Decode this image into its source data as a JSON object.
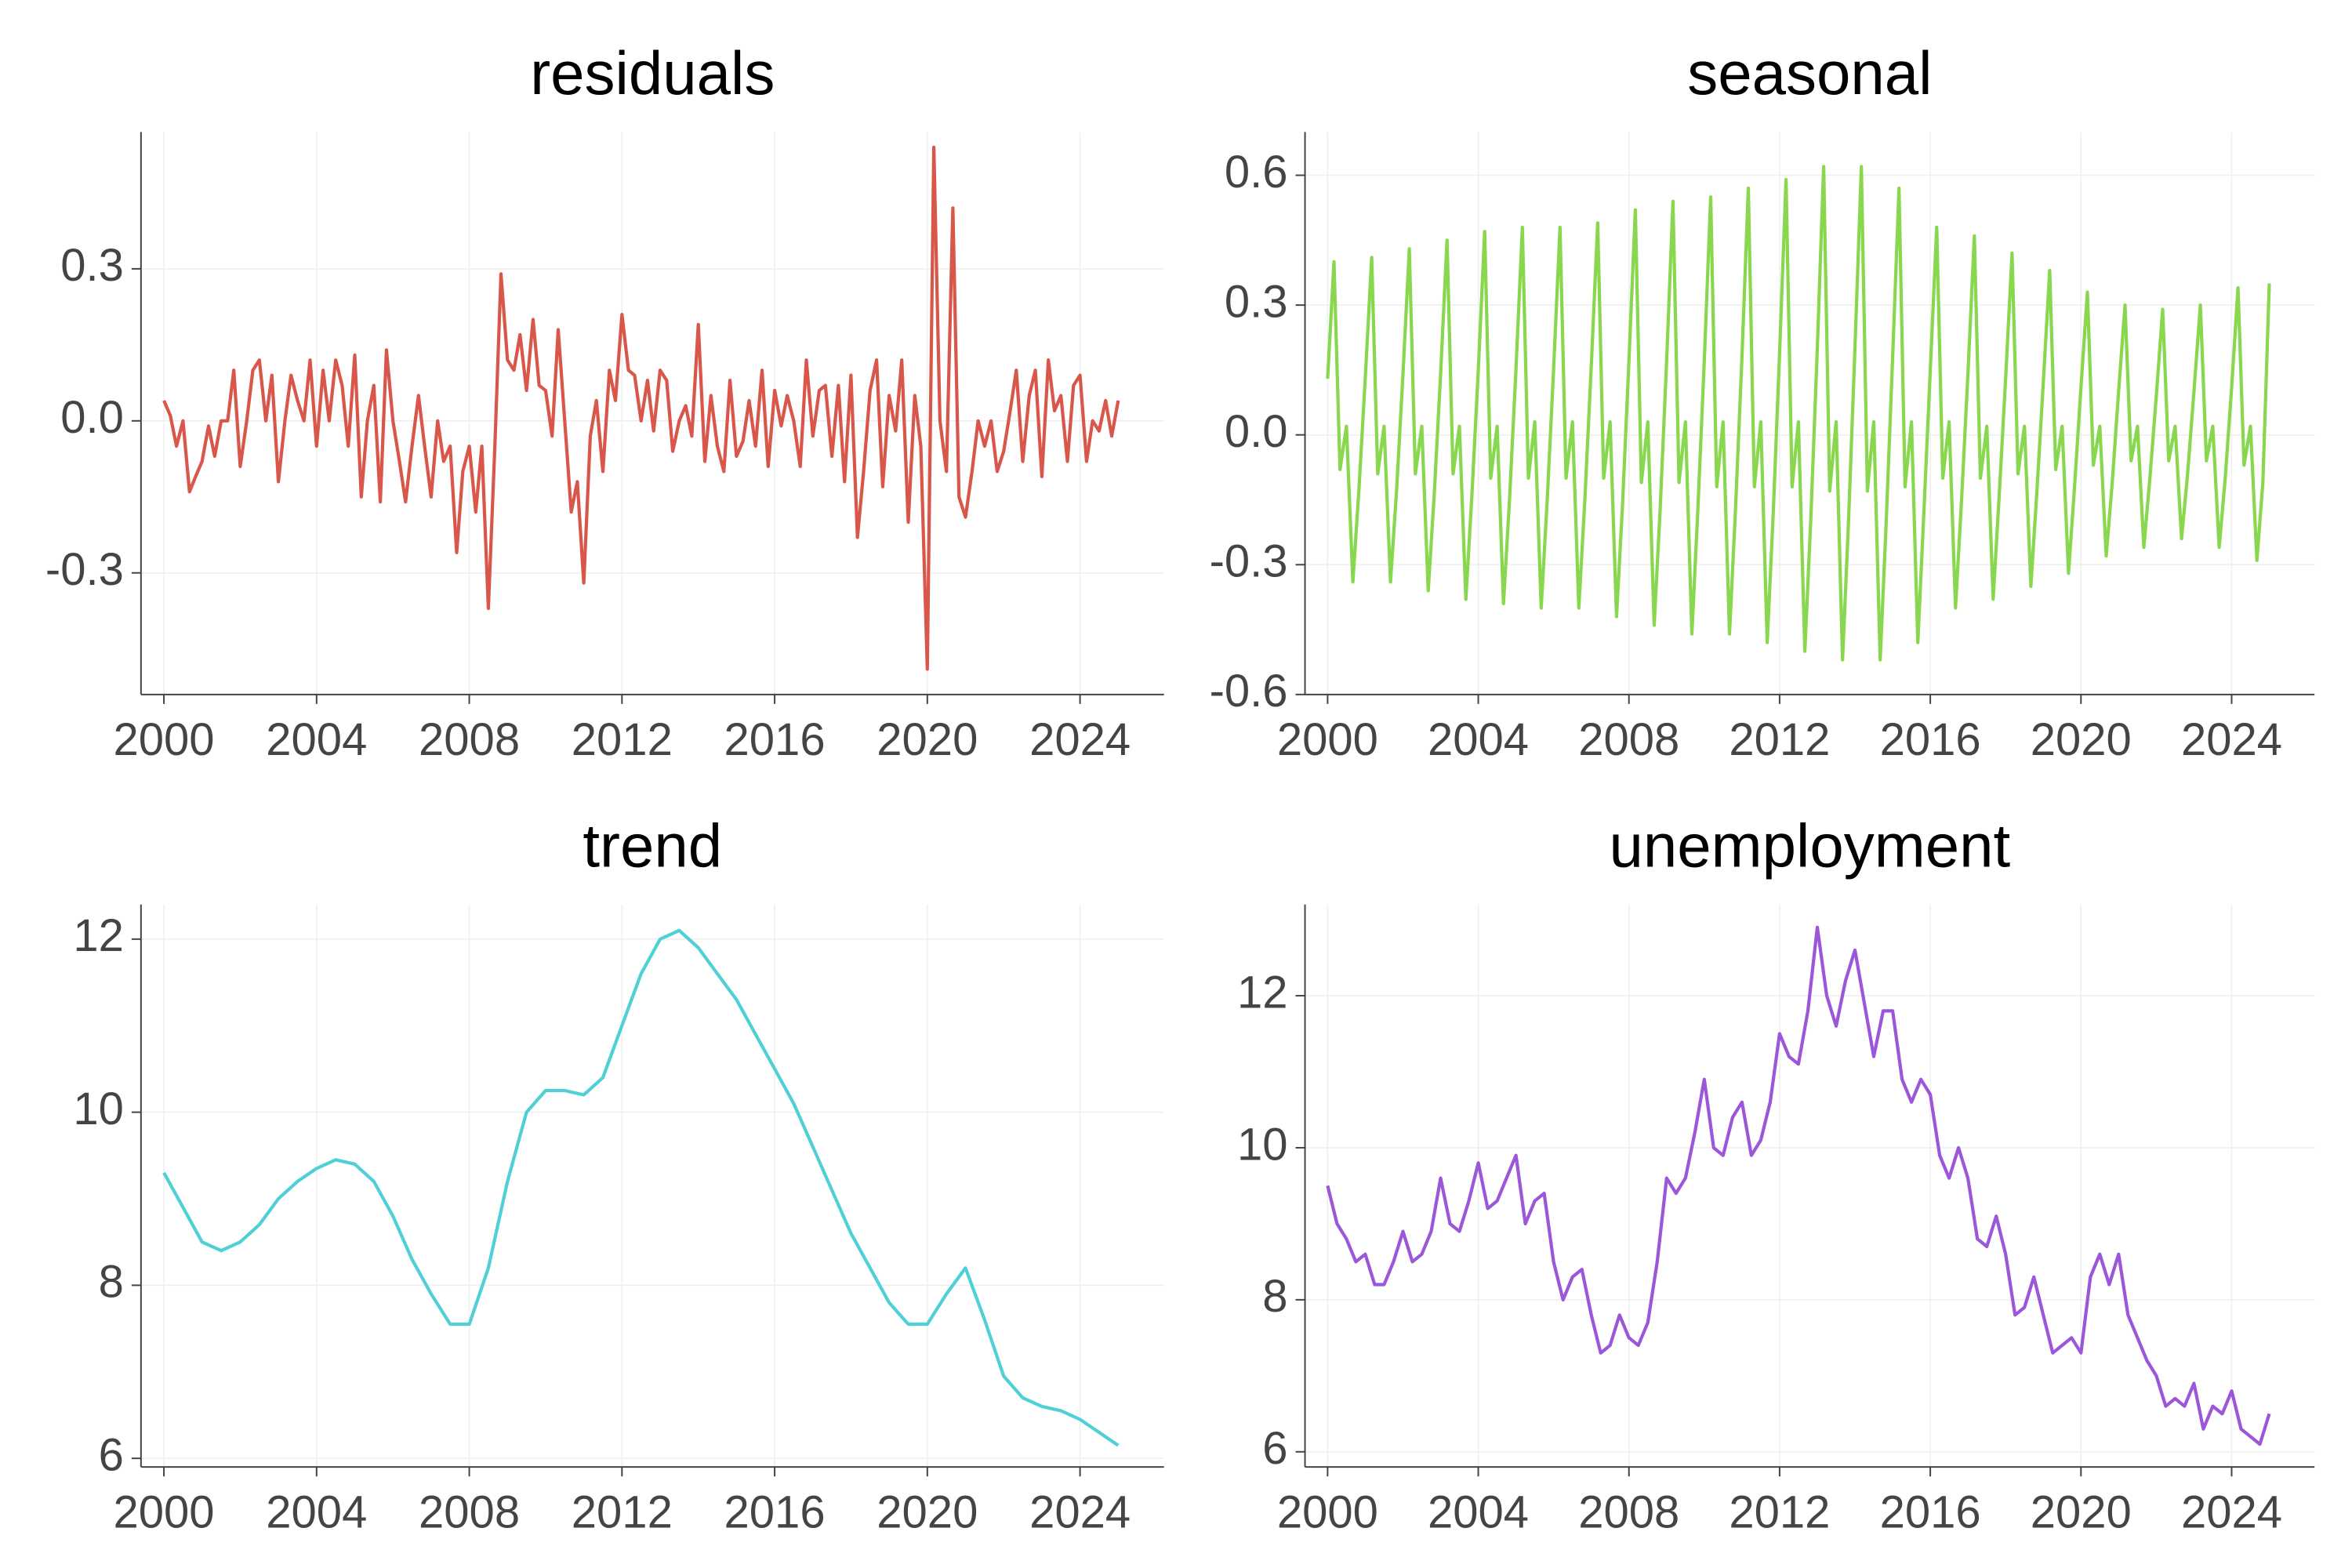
{
  "chart_data": [
    {
      "type": "line",
      "title": "residuals",
      "color": "#d9574a",
      "grid": true,
      "xlim": [
        1999.4,
        2026.2
      ],
      "xticks": [
        2000,
        2004,
        2008,
        2012,
        2016,
        2020,
        2024
      ],
      "ylim": [
        -0.54,
        0.57
      ],
      "yticks": [
        -0.3,
        {
          "value": 0,
          "label": "0.0"
        },
        0.3
      ],
      "x": [
        2000,
        2000.17,
        2000.33,
        2000.5,
        2000.67,
        2000.83,
        2001,
        2001.17,
        2001.33,
        2001.5,
        2001.67,
        2001.83,
        2002,
        2002.17,
        2002.33,
        2002.5,
        2002.67,
        2002.83,
        2003,
        2003.17,
        2003.33,
        2003.5,
        2003.67,
        2003.83,
        2004,
        2004.17,
        2004.33,
        2004.5,
        2004.67,
        2004.83,
        2005,
        2005.17,
        2005.33,
        2005.5,
        2005.67,
        2005.83,
        2006,
        2006.17,
        2006.33,
        2006.5,
        2006.67,
        2006.83,
        2007,
        2007.17,
        2007.33,
        2007.5,
        2007.67,
        2007.83,
        2008,
        2008.17,
        2008.33,
        2008.5,
        2008.67,
        2008.83,
        2009,
        2009.17,
        2009.33,
        2009.5,
        2009.67,
        2009.83,
        2010,
        2010.17,
        2010.33,
        2010.5,
        2010.67,
        2010.83,
        2011,
        2011.17,
        2011.33,
        2011.5,
        2011.67,
        2011.83,
        2012,
        2012.17,
        2012.33,
        2012.5,
        2012.67,
        2012.83,
        2013,
        2013.17,
        2013.33,
        2013.5,
        2013.67,
        2013.83,
        2014,
        2014.17,
        2014.33,
        2014.5,
        2014.67,
        2014.83,
        2015,
        2015.17,
        2015.33,
        2015.5,
        2015.67,
        2015.83,
        2016,
        2016.17,
        2016.33,
        2016.5,
        2016.67,
        2016.83,
        2017,
        2017.17,
        2017.33,
        2017.5,
        2017.67,
        2017.83,
        2018,
        2018.17,
        2018.33,
        2018.5,
        2018.67,
        2018.83,
        2019,
        2019.17,
        2019.33,
        2019.5,
        2019.67,
        2019.83,
        2020,
        2020.17,
        2020.33,
        2020.5,
        2020.67,
        2020.83,
        2021,
        2021.17,
        2021.33,
        2021.5,
        2021.67,
        2021.83,
        2022,
        2022.17,
        2022.33,
        2022.5,
        2022.67,
        2022.83,
        2023,
        2023.17,
        2023.33,
        2023.5,
        2023.67,
        2023.83,
        2024,
        2024.17,
        2024.33,
        2024.5,
        2024.67,
        2024.83,
        2025
      ],
      "values": [
        0.04,
        0.01,
        -0.05,
        0,
        -0.14,
        -0.11,
        -0.08,
        -0.01,
        -0.07,
        0,
        0,
        0.1,
        -0.09,
        0,
        0.1,
        0.12,
        0,
        0.09,
        -0.12,
        0,
        0.09,
        0.04,
        0,
        0.12,
        -0.05,
        0.1,
        0,
        0.12,
        0.07,
        -0.05,
        0.13,
        -0.15,
        0,
        0.07,
        -0.16,
        0.14,
        0,
        -0.08,
        -0.16,
        -0.05,
        0.05,
        -0.05,
        -0.15,
        0,
        -0.08,
        -0.05,
        -0.26,
        -0.1,
        -0.05,
        -0.18,
        -0.05,
        -0.37,
        -0.05,
        0.29,
        0.12,
        0.1,
        0.17,
        0.06,
        0.2,
        0.07,
        0.06,
        -0.03,
        0.18,
        0,
        -0.18,
        -0.12,
        -0.32,
        -0.03,
        0.04,
        -0.1,
        0.1,
        0.04,
        0.21,
        0.1,
        0.09,
        0,
        0.08,
        -0.02,
        0.1,
        0.08,
        -0.06,
        0,
        0.03,
        -0.03,
        0.19,
        -0.08,
        0.05,
        -0.05,
        -0.1,
        0.08,
        -0.07,
        -0.04,
        0.04,
        -0.05,
        0.1,
        -0.09,
        0.06,
        -0.01,
        0.05,
        0,
        -0.09,
        0.12,
        -0.03,
        0.06,
        0.07,
        -0.07,
        0.07,
        -0.12,
        0.09,
        -0.23,
        -0.1,
        0.06,
        0.12,
        -0.13,
        0.05,
        -0.02,
        0.12,
        -0.2,
        0.05,
        -0.05,
        -0.49,
        0.54,
        0,
        -0.1,
        0.42,
        -0.15,
        -0.19,
        -0.1,
        0,
        -0.05,
        0,
        -0.1,
        -0.06,
        0.02,
        0.1,
        -0.08,
        0.05,
        0.1,
        -0.11,
        0.12,
        0.02,
        0.05,
        -0.08,
        0.07,
        0.09,
        -0.08,
        0,
        -0.02,
        0.04,
        -0.03,
        0.04
      ]
    },
    {
      "type": "line",
      "title": "seasonal",
      "color": "#88d74f",
      "grid": true,
      "xlim": [
        1999.4,
        2026.2
      ],
      "xticks": [
        2000,
        2004,
        2008,
        2012,
        2016,
        2020,
        2024
      ],
      "ylim": [
        -0.6,
        0.7
      ],
      "yticks": [
        -0.6,
        -0.3,
        {
          "value": 0,
          "label": "0.0"
        },
        0.3,
        0.6
      ],
      "x": [
        2000,
        2000.17,
        2000.33,
        2000.5,
        2000.67,
        2000.83,
        2001,
        2001.17,
        2001.33,
        2001.5,
        2001.67,
        2001.83,
        2002,
        2002.17,
        2002.33,
        2002.5,
        2002.67,
        2002.83,
        2003,
        2003.17,
        2003.33,
        2003.5,
        2003.67,
        2003.83,
        2004,
        2004.17,
        2004.33,
        2004.5,
        2004.67,
        2004.83,
        2005,
        2005.17,
        2005.33,
        2005.5,
        2005.67,
        2005.83,
        2006,
        2006.17,
        2006.33,
        2006.5,
        2006.67,
        2006.83,
        2007,
        2007.17,
        2007.33,
        2007.5,
        2007.67,
        2007.83,
        2008,
        2008.17,
        2008.33,
        2008.5,
        2008.67,
        2008.83,
        2009,
        2009.17,
        2009.33,
        2009.5,
        2009.67,
        2009.83,
        2010,
        2010.17,
        2010.33,
        2010.5,
        2010.67,
        2010.83,
        2011,
        2011.17,
        2011.33,
        2011.5,
        2011.67,
        2011.83,
        2012,
        2012.17,
        2012.33,
        2012.5,
        2012.67,
        2012.83,
        2013,
        2013.17,
        2013.33,
        2013.5,
        2013.67,
        2013.83,
        2014,
        2014.17,
        2014.33,
        2014.5,
        2014.67,
        2014.83,
        2015,
        2015.17,
        2015.33,
        2015.5,
        2015.67,
        2015.83,
        2016,
        2016.17,
        2016.33,
        2016.5,
        2016.67,
        2016.83,
        2017,
        2017.17,
        2017.33,
        2017.5,
        2017.67,
        2017.83,
        2018,
        2018.17,
        2018.33,
        2018.5,
        2018.67,
        2018.83,
        2019,
        2019.17,
        2019.33,
        2019.5,
        2019.67,
        2019.83,
        2020,
        2020.17,
        2020.33,
        2020.5,
        2020.67,
        2020.83,
        2021,
        2021.17,
        2021.33,
        2021.5,
        2021.67,
        2021.83,
        2022,
        2022.17,
        2022.33,
        2022.5,
        2022.67,
        2022.83,
        2023,
        2023.17,
        2023.33,
        2023.5,
        2023.67,
        2023.83,
        2024,
        2024.17,
        2024.33,
        2024.5,
        2024.67,
        2024.83,
        2025
      ],
      "values": [
        0.13,
        0.4,
        -0.08,
        0.02,
        -0.34,
        -0.13,
        0.13,
        0.41,
        -0.09,
        0.02,
        -0.34,
        -0.13,
        0.14,
        0.43,
        -0.09,
        0.02,
        -0.36,
        -0.14,
        0.14,
        0.45,
        -0.09,
        0.02,
        -0.38,
        -0.14,
        0.15,
        0.47,
        -0.1,
        0.02,
        -0.39,
        -0.15,
        0.15,
        0.48,
        -0.1,
        0.03,
        -0.4,
        -0.15,
        0.15,
        0.48,
        -0.1,
        0.03,
        -0.4,
        -0.15,
        0.16,
        0.49,
        -0.1,
        0.03,
        -0.42,
        -0.16,
        0.17,
        0.52,
        -0.11,
        0.03,
        -0.44,
        -0.17,
        0.17,
        0.54,
        -0.11,
        0.03,
        -0.46,
        -0.17,
        0.17,
        0.55,
        -0.12,
        0.03,
        -0.46,
        -0.17,
        0.18,
        0.57,
        -0.12,
        0.03,
        -0.48,
        -0.18,
        0.19,
        0.59,
        -0.12,
        0.03,
        -0.5,
        -0.19,
        0.2,
        0.62,
        -0.13,
        0.03,
        -0.52,
        -0.2,
        0.2,
        0.62,
        -0.13,
        0.03,
        -0.52,
        -0.2,
        0.18,
        0.57,
        -0.12,
        0.03,
        -0.48,
        -0.18,
        0.15,
        0.48,
        -0.1,
        0.03,
        -0.4,
        -0.15,
        0.14,
        0.46,
        -0.1,
        0.02,
        -0.38,
        -0.14,
        0.13,
        0.42,
        -0.09,
        0.02,
        -0.35,
        -0.13,
        0.12,
        0.38,
        -0.08,
        0.02,
        -0.32,
        -0.12,
        0.11,
        0.33,
        -0.07,
        0.02,
        -0.28,
        -0.11,
        0.1,
        0.3,
        -0.06,
        0.02,
        -0.26,
        -0.1,
        0.09,
        0.29,
        -0.06,
        0.02,
        -0.24,
        -0.09,
        0.1,
        0.3,
        -0.06,
        0.02,
        -0.26,
        -0.1,
        0.11,
        0.34,
        -0.07,
        0.02,
        -0.29,
        -0.11,
        0.35
      ]
    },
    {
      "type": "line",
      "title": "trend",
      "color": "#4fd0d6",
      "grid": true,
      "xlim": [
        1999.4,
        2026.2
      ],
      "xticks": [
        2000,
        2004,
        2008,
        2012,
        2016,
        2020,
        2024
      ],
      "ylim": [
        5.9,
        12.4
      ],
      "yticks": [
        6,
        8,
        10,
        12
      ],
      "x": [
        2000,
        2000.5,
        2001,
        2001.5,
        2002,
        2002.5,
        2003,
        2003.5,
        2004,
        2004.5,
        2005,
        2005.5,
        2006,
        2006.5,
        2007,
        2007.5,
        2008,
        2008.5,
        2009,
        2009.5,
        2010,
        2010.5,
        2011,
        2011.5,
        2012,
        2012.5,
        2013,
        2013.5,
        2014,
        2014.5,
        2015,
        2015.5,
        2016,
        2016.5,
        2017,
        2017.5,
        2018,
        2018.5,
        2019,
        2019.5,
        2020,
        2020.5,
        2021,
        2021.5,
        2022,
        2022.5,
        2023,
        2023.5,
        2024,
        2024.5,
        2025
      ],
      "values": [
        9.3,
        8.9,
        8.5,
        8.4,
        8.5,
        8.7,
        9,
        9.2,
        9.35,
        9.45,
        9.4,
        9.2,
        8.8,
        8.3,
        7.9,
        7.55,
        7.55,
        8.2,
        9.2,
        10,
        10.25,
        10.25,
        10.2,
        10.4,
        11,
        11.6,
        12,
        12.1,
        11.9,
        11.6,
        11.3,
        10.9,
        10.5,
        10.1,
        9.6,
        9.1,
        8.6,
        8.2,
        7.8,
        7.55,
        7.55,
        7.9,
        8.2,
        7.6,
        6.95,
        6.7,
        6.6,
        6.55,
        6.45,
        6.3,
        6.15
      ]
    },
    {
      "type": "line",
      "title": "unemployment",
      "color": "#9b56d9",
      "grid": true,
      "xlim": [
        1999.4,
        2026.2
      ],
      "xticks": [
        2000,
        2004,
        2008,
        2012,
        2016,
        2020,
        2024
      ],
      "ylim": [
        5.8,
        13.2
      ],
      "yticks": [
        6,
        8,
        10,
        12
      ],
      "x": [
        2000,
        2000.25,
        2000.5,
        2000.75,
        2001,
        2001.25,
        2001.5,
        2001.75,
        2002,
        2002.25,
        2002.5,
        2002.75,
        2003,
        2003.25,
        2003.5,
        2003.75,
        2004,
        2004.25,
        2004.5,
        2004.75,
        2005,
        2005.25,
        2005.5,
        2005.75,
        2006,
        2006.25,
        2006.5,
        2006.75,
        2007,
        2007.25,
        2007.5,
        2007.75,
        2008,
        2008.25,
        2008.5,
        2008.75,
        2009,
        2009.25,
        2009.5,
        2009.75,
        2010,
        2010.25,
        2010.5,
        2010.75,
        2011,
        2011.25,
        2011.5,
        2011.75,
        2012,
        2012.25,
        2012.5,
        2012.75,
        2013,
        2013.25,
        2013.5,
        2013.75,
        2014,
        2014.25,
        2014.5,
        2014.75,
        2015,
        2015.25,
        2015.5,
        2015.75,
        2016,
        2016.25,
        2016.5,
        2016.75,
        2017,
        2017.25,
        2017.5,
        2017.75,
        2018,
        2018.25,
        2018.5,
        2018.75,
        2019,
        2019.25,
        2019.5,
        2019.75,
        2020,
        2020.25,
        2020.5,
        2020.75,
        2021,
        2021.25,
        2021.5,
        2021.75,
        2022,
        2022.25,
        2022.5,
        2022.75,
        2023,
        2023.25,
        2023.5,
        2023.75,
        2024,
        2024.25,
        2024.5,
        2024.75,
        2025
      ],
      "values": [
        9.5,
        9,
        8.8,
        8.5,
        8.6,
        8.2,
        8.2,
        8.5,
        8.9,
        8.5,
        8.6,
        8.9,
        9.6,
        9,
        8.9,
        9.3,
        9.8,
        9.2,
        9.3,
        9.6,
        9.9,
        9,
        9.3,
        9.4,
        8.5,
        8,
        8.3,
        8.4,
        7.8,
        7.3,
        7.4,
        7.8,
        7.5,
        7.4,
        7.7,
        8.5,
        9.6,
        9.4,
        9.6,
        10.2,
        10.9,
        10,
        9.9,
        10.4,
        10.6,
        9.9,
        10.1,
        10.6,
        11.5,
        11.2,
        11.1,
        11.8,
        12.9,
        12,
        11.6,
        12.2,
        12.6,
        11.9,
        11.2,
        11.8,
        11.8,
        10.9,
        10.6,
        10.9,
        10.7,
        9.9,
        9.6,
        10,
        9.6,
        8.8,
        8.7,
        9.1,
        8.6,
        7.8,
        7.9,
        8.3,
        7.8,
        7.3,
        7.4,
        7.5,
        7.3,
        8.3,
        8.6,
        8.2,
        8.6,
        7.8,
        7.5,
        7.2,
        7,
        6.6,
        6.7,
        6.6,
        6.9,
        6.3,
        6.6,
        6.5,
        6.8,
        6.3,
        6.2,
        6.1,
        6.5
      ]
    }
  ]
}
